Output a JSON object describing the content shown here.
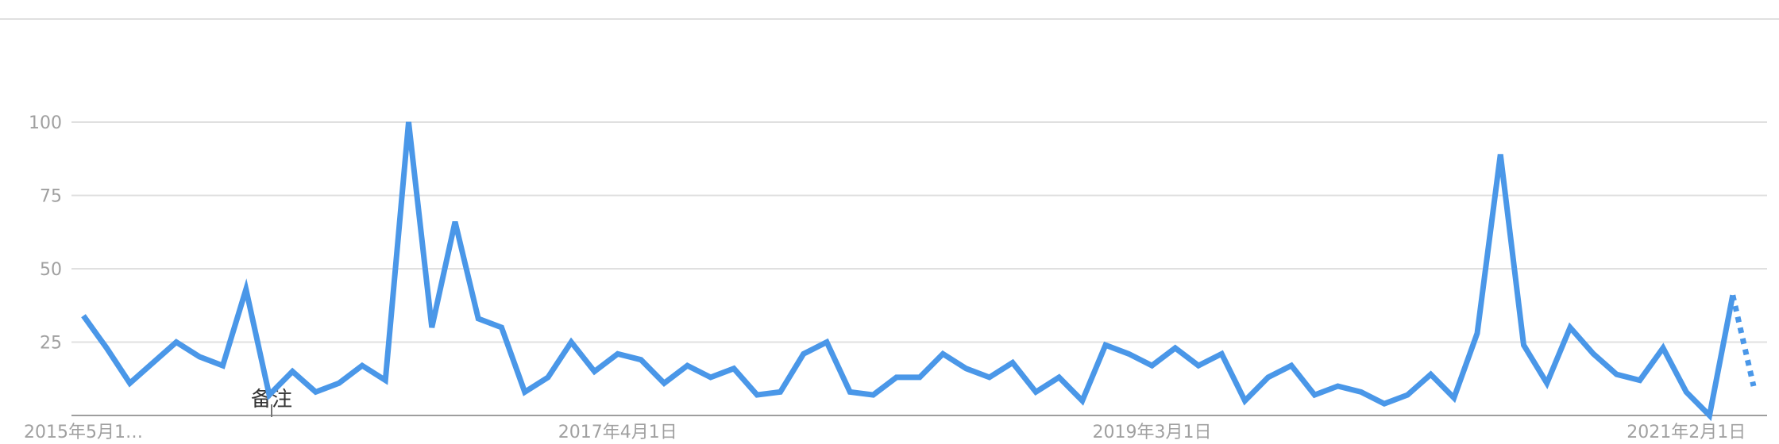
{
  "chart_data": {
    "type": "line",
    "title": "",
    "xlabel": "",
    "ylabel": "",
    "ylim": [
      0,
      100
    ],
    "grid": true,
    "legend": "none",
    "y_ticks": [
      {
        "value": 25,
        "label": "25"
      },
      {
        "value": 50,
        "label": "50"
      },
      {
        "value": 75,
        "label": "75"
      },
      {
        "value": 100,
        "label": "100"
      }
    ],
    "x_ticks": [
      {
        "index": 0,
        "label": "2015年5月1…"
      },
      {
        "index": 23,
        "label": "2017年4月1日"
      },
      {
        "index": 46,
        "label": "2019年3月1日"
      },
      {
        "index": 69,
        "label": "2021年2月1日"
      }
    ],
    "annotations": [
      {
        "index": 8,
        "label": "备注"
      }
    ],
    "series": [
      {
        "color": "#4a97e8",
        "values": [
          34,
          23,
          11,
          18,
          25,
          20,
          17,
          43,
          7,
          15,
          8,
          11,
          17,
          12,
          100,
          30,
          66,
          33,
          30,
          8,
          13,
          25,
          15,
          21,
          19,
          11,
          17,
          13,
          16,
          7,
          8,
          21,
          25,
          8,
          7,
          13,
          13,
          21,
          16,
          13,
          18,
          8,
          13,
          5,
          24,
          21,
          17,
          23,
          17,
          21,
          5,
          13,
          17,
          7,
          10,
          8,
          4,
          7,
          14,
          6,
          28,
          89,
          24,
          11,
          30,
          21,
          14,
          12,
          23,
          8,
          0,
          41
        ],
        "partial_value": 10
      }
    ]
  }
}
